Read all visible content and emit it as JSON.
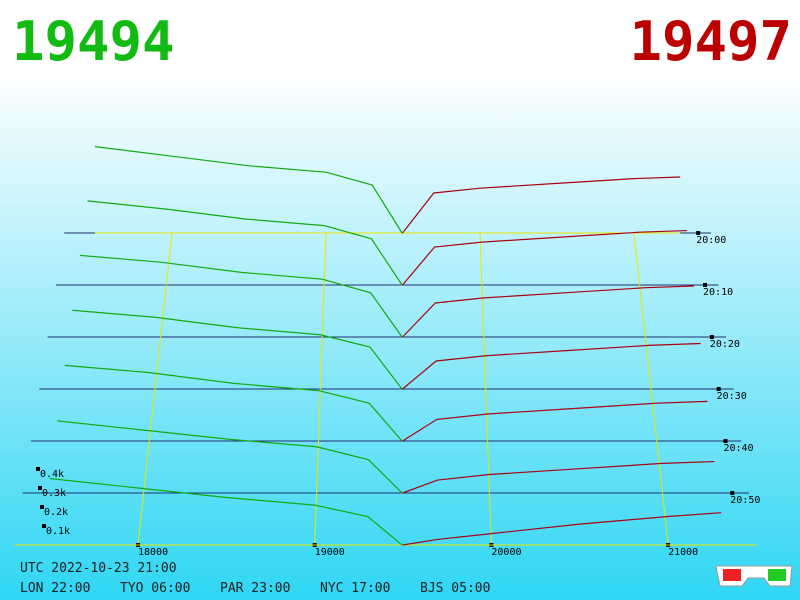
{
  "header": {
    "bid": "19494",
    "ask": "19497"
  },
  "chart_data": {
    "type": "depth3d",
    "bid_color": "#11aa11",
    "ask_color": "#aa0011",
    "bid_prices": [
      17500,
      18000,
      18500,
      19000,
      19300,
      19494
    ],
    "ask_prices": [
      19497,
      19700,
      20000,
      20500,
      21000,
      21300
    ],
    "xticks": [
      18000,
      19000,
      20000,
      21000
    ],
    "yticks": [
      {
        "value": 100,
        "label": "0.1k"
      },
      {
        "value": 200,
        "label": "0.2k"
      },
      {
        "value": 300,
        "label": "0.3k"
      },
      {
        "value": 400,
        "label": "0.4k"
      }
    ],
    "zlim": [
      0,
      60
    ],
    "zticks": [
      {
        "value": 0,
        "label": "20:00"
      },
      {
        "value": 10,
        "label": "20:10"
      },
      {
        "value": 20,
        "label": "20:20"
      },
      {
        "value": 30,
        "label": "20:30"
      },
      {
        "value": 40,
        "label": "20:40"
      },
      {
        "value": 50,
        "label": "20:50"
      }
    ],
    "snapshots": [
      {
        "t": 0,
        "bid": [
          540,
          480,
          420,
          380,
          300,
          0
        ],
        "ask": [
          0,
          250,
          280,
          310,
          340,
          350
        ]
      },
      {
        "t": 10,
        "bid": [
          510,
          460,
          400,
          360,
          280,
          0
        ],
        "ask": [
          0,
          230,
          260,
          290,
          320,
          330
        ]
      },
      {
        "t": 20,
        "bid": [
          480,
          440,
          380,
          340,
          260,
          0
        ],
        "ask": [
          0,
          200,
          230,
          260,
          290,
          300
        ]
      },
      {
        "t": 30,
        "bid": [
          450,
          410,
          350,
          310,
          240,
          0
        ],
        "ask": [
          0,
          160,
          190,
          220,
          250,
          260
        ]
      },
      {
        "t": 40,
        "bid": [
          420,
          380,
          320,
          280,
          210,
          0
        ],
        "ask": [
          0,
          120,
          150,
          180,
          210,
          220
        ]
      },
      {
        "t": 50,
        "bid": [
          390,
          340,
          290,
          250,
          180,
          0
        ],
        "ask": [
          0,
          70,
          100,
          130,
          160,
          170
        ]
      },
      {
        "t": 60,
        "bid": [
          350,
          300,
          250,
          210,
          150,
          0
        ],
        "ask": [
          0,
          30,
          60,
          110,
          150,
          170
        ]
      }
    ]
  },
  "footer": {
    "utc": "UTC 2022-10-23 21:00",
    "clocks": [
      "LON 22:00",
      "TYO 06:00",
      "PAR 23:00",
      "NYC 17:00",
      "BJS 05:00"
    ]
  }
}
